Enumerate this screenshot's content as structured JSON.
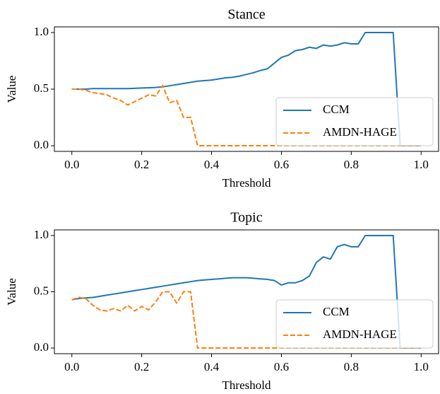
{
  "chart_data": [
    {
      "type": "line",
      "title": "Stance",
      "xlabel": "Threshold",
      "ylabel": "Value",
      "x": [
        0,
        0.02,
        0.04,
        0.06,
        0.08,
        0.1,
        0.12,
        0.14,
        0.16,
        0.18,
        0.2,
        0.22,
        0.24,
        0.26,
        0.28,
        0.3,
        0.32,
        0.34,
        0.36,
        0.38,
        0.4,
        0.42,
        0.44,
        0.46,
        0.48,
        0.5,
        0.52,
        0.54,
        0.56,
        0.58,
        0.6,
        0.62,
        0.64,
        0.66,
        0.68,
        0.7,
        0.72,
        0.74,
        0.76,
        0.78,
        0.8,
        0.82,
        0.84,
        0.86,
        0.88,
        0.9,
        0.92,
        0.94,
        0.96,
        0.98,
        1.0
      ],
      "series": [
        {
          "name": "CCM",
          "color": "#1f77b4",
          "linestyle": "solid",
          "values": [
            0.5,
            0.5,
            0.5,
            0.505,
            0.505,
            0.505,
            0.505,
            0.505,
            0.505,
            0.507,
            0.51,
            0.512,
            0.515,
            0.52,
            0.53,
            0.54,
            0.55,
            0.56,
            0.57,
            0.575,
            0.58,
            0.59,
            0.6,
            0.605,
            0.615,
            0.63,
            0.645,
            0.665,
            0.68,
            0.73,
            0.78,
            0.8,
            0.84,
            0.85,
            0.87,
            0.86,
            0.89,
            0.88,
            0.89,
            0.91,
            0.9,
            0.9,
            1.0,
            1.0,
            1.0,
            1.0,
            1.0,
            0,
            0,
            0,
            0
          ]
        },
        {
          "name": "AMDN-HAGE",
          "color": "#ff7f0e",
          "linestyle": "dashed",
          "values": [
            0.5,
            0.5,
            0.49,
            0.47,
            0.46,
            0.45,
            0.42,
            0.4,
            0.36,
            0.39,
            0.42,
            0.45,
            0.44,
            0.53,
            0.38,
            0.4,
            0.25,
            0.25,
            0,
            0,
            0,
            0,
            0,
            0,
            0,
            0,
            0,
            0,
            0,
            0,
            0,
            0,
            0,
            0,
            0,
            0,
            0,
            0,
            0,
            0,
            0,
            0,
            0,
            0,
            0,
            0,
            0,
            0,
            0,
            0,
            0
          ]
        }
      ],
      "xlim": [
        -0.05,
        1.05
      ],
      "ylim": [
        -0.05,
        1.05
      ],
      "xticks": [
        {
          "value": 0,
          "label": "0.0"
        },
        {
          "value": 0.2,
          "label": "0.2"
        },
        {
          "value": 0.4,
          "label": "0.4"
        },
        {
          "value": 0.6,
          "label": "0.6"
        },
        {
          "value": 0.8,
          "label": "0.8"
        },
        {
          "value": 1,
          "label": "1.0"
        }
      ],
      "yticks": [
        {
          "value": 0,
          "label": "0.0"
        },
        {
          "value": 0.5,
          "label": "0.5"
        },
        {
          "value": 1,
          "label": "1.0"
        }
      ],
      "legend": "lower right"
    },
    {
      "type": "line",
      "title": "Topic",
      "xlabel": "Threshold",
      "ylabel": "Value",
      "x": [
        0,
        0.02,
        0.04,
        0.06,
        0.08,
        0.1,
        0.12,
        0.14,
        0.16,
        0.18,
        0.2,
        0.22,
        0.24,
        0.26,
        0.28,
        0.3,
        0.32,
        0.34,
        0.36,
        0.38,
        0.4,
        0.42,
        0.44,
        0.46,
        0.48,
        0.5,
        0.52,
        0.54,
        0.56,
        0.58,
        0.6,
        0.62,
        0.64,
        0.66,
        0.68,
        0.7,
        0.72,
        0.74,
        0.76,
        0.78,
        0.8,
        0.82,
        0.84,
        0.86,
        0.88,
        0.9,
        0.92,
        0.94,
        0.96,
        0.98,
        1.0
      ],
      "series": [
        {
          "name": "CCM",
          "color": "#1f77b4",
          "linestyle": "solid",
          "values": [
            0.43,
            0.44,
            0.445,
            0.45,
            0.46,
            0.47,
            0.48,
            0.49,
            0.5,
            0.51,
            0.52,
            0.53,
            0.54,
            0.55,
            0.56,
            0.57,
            0.58,
            0.59,
            0.6,
            0.605,
            0.61,
            0.615,
            0.62,
            0.625,
            0.625,
            0.625,
            0.62,
            0.615,
            0.61,
            0.6,
            0.56,
            0.58,
            0.58,
            0.6,
            0.64,
            0.76,
            0.81,
            0.79,
            0.9,
            0.92,
            0.9,
            0.9,
            1.0,
            1.0,
            1.0,
            1.0,
            1.0,
            0,
            0,
            0,
            0
          ]
        },
        {
          "name": "AMDN-HAGE",
          "color": "#ff7f0e",
          "linestyle": "dashed",
          "values": [
            0.43,
            0.45,
            0.44,
            0.38,
            0.34,
            0.33,
            0.35,
            0.33,
            0.38,
            0.33,
            0.37,
            0.34,
            0.41,
            0.5,
            0.5,
            0.4,
            0.5,
            0.5,
            0,
            0,
            0,
            0,
            0,
            0,
            0,
            0,
            0,
            0,
            0,
            0,
            0,
            0,
            0,
            0,
            0,
            0,
            0,
            0,
            0,
            0,
            0,
            0,
            0,
            0,
            0,
            0,
            0,
            0,
            0,
            0,
            0
          ]
        }
      ],
      "xlim": [
        -0.05,
        1.05
      ],
      "ylim": [
        -0.05,
        1.05
      ],
      "xticks": [
        {
          "value": 0,
          "label": "0.0"
        },
        {
          "value": 0.2,
          "label": "0.2"
        },
        {
          "value": 0.4,
          "label": "0.4"
        },
        {
          "value": 0.6,
          "label": "0.6"
        },
        {
          "value": 0.8,
          "label": "0.8"
        },
        {
          "value": 1,
          "label": "1.0"
        }
      ],
      "yticks": [
        {
          "value": 0,
          "label": "0.0"
        },
        {
          "value": 0.5,
          "label": "0.5"
        },
        {
          "value": 1,
          "label": "1.0"
        }
      ],
      "legend": "lower right"
    }
  ]
}
